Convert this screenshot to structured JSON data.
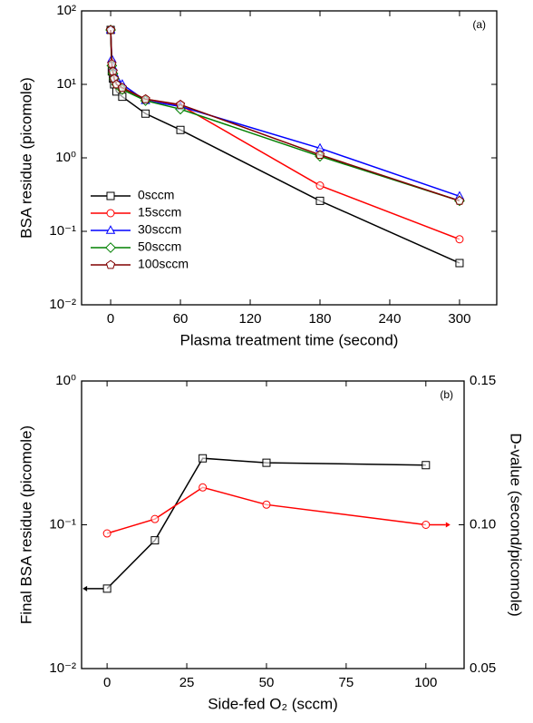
{
  "chart_data": [
    {
      "type": "line",
      "annotation": "(a)",
      "xlabel": "Plasma treatment time (second)",
      "ylabel": "BSA residue (picomole)",
      "x": [
        0,
        1,
        2,
        3,
        5,
        10,
        30,
        60,
        180,
        300
      ],
      "xlim": [
        -25,
        332
      ],
      "xticks": [
        0,
        60,
        120,
        180,
        240,
        300
      ],
      "yscale": "log",
      "ylim": [
        0.01,
        100
      ],
      "yticks": [
        {
          "value": 0.01,
          "label": "10⁻²"
        },
        {
          "value": 0.1,
          "label": "10⁻¹"
        },
        {
          "value": 1,
          "label": "10⁰"
        },
        {
          "value": 10,
          "label": "10¹"
        },
        {
          "value": 100,
          "label": "10²"
        }
      ],
      "legend": "lower left",
      "series": [
        {
          "name": "0sccm",
          "color": "#000000",
          "marker": "square",
          "values": [
            55,
            15,
            12,
            10,
            8,
            6.8,
            4,
            2.4,
            0.26,
            0.037
          ]
        },
        {
          "name": "15sccm",
          "color": "#ff0000",
          "marker": "circle",
          "values": [
            55,
            20,
            14,
            12,
            10,
            8.5,
            6.3,
            5.2,
            0.42,
            0.078
          ]
        },
        {
          "name": "30sccm",
          "color": "#0000ff",
          "marker": "triangle",
          "values": [
            55,
            22,
            17,
            14,
            12,
            10,
            6,
            5,
            1.35,
            0.3
          ]
        },
        {
          "name": "50sccm",
          "color": "#008000",
          "marker": "diamond",
          "values": [
            55,
            18,
            14,
            12,
            10,
            8.5,
            6,
            4.6,
            1.05,
            0.26
          ]
        },
        {
          "name": "100sccm",
          "color": "#800000",
          "marker": "pentagon",
          "values": [
            55,
            19,
            15,
            12,
            10,
            9,
            6.3,
            5.3,
            1.1,
            0.26
          ]
        }
      ]
    },
    {
      "type": "line",
      "annotation": "(b)",
      "xlabel": "Side-fed O₂ (sccm)",
      "ylabel": "Final BSA residue (picomole)",
      "y2label": "D-value (second/picomole)",
      "x": [
        0,
        15,
        30,
        50,
        100
      ],
      "xlim": [
        -8,
        112
      ],
      "xticks": [
        0,
        25,
        50,
        75,
        100
      ],
      "yscale": "log",
      "ylim": [
        0.01,
        1
      ],
      "yticks": [
        {
          "value": 0.01,
          "label": "10⁻²"
        },
        {
          "value": 0.1,
          "label": "10⁻¹"
        },
        {
          "value": 1,
          "label": "10⁰"
        }
      ],
      "y2lim": [
        0.05,
        0.15
      ],
      "y2ticks": [
        0.05,
        {
          "value": 0.1,
          "label": "0.10"
        },
        0.15
      ],
      "series": [
        {
          "color": "#000000",
          "marker": "square",
          "values": [
            0.036,
            0.078,
            0.29,
            0.27,
            0.26
          ]
        },
        {
          "color": "#ff0000",
          "marker": "circle",
          "axis": "y2",
          "values": [
            0.097,
            0.102,
            0.113,
            0.107,
            0.1
          ]
        }
      ]
    }
  ]
}
